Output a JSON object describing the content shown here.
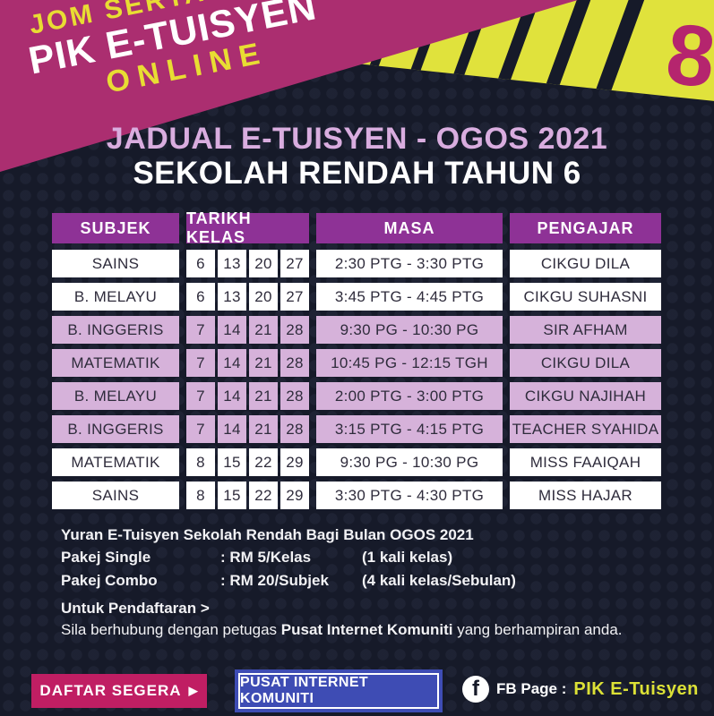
{
  "banner": {
    "line1": "JOM SERTAI",
    "line2": "PIK E-TUISYEN",
    "line3": "ONLINE"
  },
  "corner_number": "8",
  "title": {
    "line1": "JADUAL E-TUISYEN - OGOS 2021",
    "line2": "SEKOLAH RENDAH TAHUN 6"
  },
  "table": {
    "headers": {
      "subjek": "SUBJEK",
      "tarikh_kelas": "TARIKH KELAS",
      "masa": "MASA",
      "pengajar": "PENGAJAR"
    },
    "rows": [
      {
        "subjek": "SAINS",
        "dates": [
          "6",
          "13",
          "20",
          "27"
        ],
        "masa": "2:30 PTG - 3:30 PTG",
        "pengajar": "CIKGU DILA",
        "shade": "white"
      },
      {
        "subjek": "B. MELAYU",
        "dates": [
          "6",
          "13",
          "20",
          "27"
        ],
        "masa": "3:45 PTG - 4:45 PTG",
        "pengajar": "CIKGU SUHASNI",
        "shade": "white"
      },
      {
        "subjek": "B. INGGERIS",
        "dates": [
          "7",
          "14",
          "21",
          "28"
        ],
        "masa": "9:30 PG - 10:30 PG",
        "pengajar": "SIR AFHAM",
        "shade": "lilac"
      },
      {
        "subjek": "MATEMATIK",
        "dates": [
          "7",
          "14",
          "21",
          "28"
        ],
        "masa": "10:45 PG - 12:15 TGH",
        "pengajar": "CIKGU DILA",
        "shade": "lilac"
      },
      {
        "subjek": "B. MELAYU",
        "dates": [
          "7",
          "14",
          "21",
          "28"
        ],
        "masa": "2:00 PTG - 3:00 PTG",
        "pengajar": "CIKGU NAJIHAH",
        "shade": "lilac"
      },
      {
        "subjek": "B. INGGERIS",
        "dates": [
          "7",
          "14",
          "21",
          "28"
        ],
        "masa": "3:15 PTG - 4:15 PTG",
        "pengajar": "TEACHER SYAHIDA",
        "shade": "lilac"
      },
      {
        "subjek": "MATEMATIK",
        "dates": [
          "8",
          "15",
          "22",
          "29"
        ],
        "masa": "9:30 PG - 10:30 PG",
        "pengajar": "MISS FAAIQAH",
        "shade": "white"
      },
      {
        "subjek": "SAINS",
        "dates": [
          "8",
          "15",
          "22",
          "29"
        ],
        "masa": "3:30 PTG - 4:30 PTG",
        "pengajar": "MISS HAJAR",
        "shade": "white"
      }
    ]
  },
  "fees": {
    "heading": "Yuran E-Tuisyen Sekolah Rendah Bagi Bulan OGOS 2021",
    "items": [
      {
        "label": "Pakej Single",
        "value": ": RM 5/Kelas",
        "note": "(1 kali kelas)"
      },
      {
        "label": "Pakej Combo",
        "value": ": RM 20/Subjek",
        "note": "(4 kali kelas/Sebulan)"
      }
    ]
  },
  "registration": {
    "heading": "Untuk Pendaftaran >",
    "line_pre": "Sila berhubung dengan petugas ",
    "line_bold": "Pusat Internet Komuniti",
    "line_post": " yang berhampiran anda."
  },
  "footer": {
    "daftar_label": "DAFTAR SEGERA",
    "daftar_arrow": "▶",
    "pik_label": "PUSAT INTERNET KOMUNITI",
    "fb_icon_letter": "f",
    "fb_label": "FB Page :",
    "fb_page": "PIK E-Tuisyen"
  },
  "colors": {
    "background": "#161a29",
    "magenta_banner": "#ab2e70",
    "yellow": "#e0e23c",
    "header_purple": "#8e3296",
    "row_lilac": "#d6b2da",
    "title_lavender": "#d9addf",
    "button_magenta": "#c01e63",
    "button_blue": "#3e4cb4",
    "fb_yellow": "#dce136",
    "corner_number_pink": "#b5256e"
  }
}
